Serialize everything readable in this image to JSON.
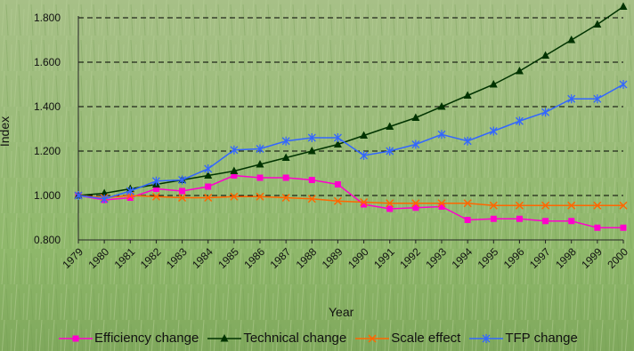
{
  "chart_data": {
    "type": "line",
    "title": "",
    "xlabel": "Year",
    "ylabel": "Index",
    "categories": [
      "1979",
      "1980",
      "1981",
      "1982",
      "1983",
      "1984",
      "1985",
      "1986",
      "1987",
      "1988",
      "1989",
      "1990",
      "1991",
      "1992",
      "1993",
      "1994",
      "1995",
      "1996",
      "1997",
      "1998",
      "1999",
      "2000"
    ],
    "ylim": [
      0.8,
      1.8
    ],
    "yticks": [
      "0.800",
      "1.000",
      "1.200",
      "1.400",
      "1.600",
      "1.800"
    ],
    "grid": "horizontal dashed",
    "legend_position": "bottom",
    "series": [
      {
        "name": "Efficiency change",
        "color": "#FF00CC",
        "marker": "square",
        "values": [
          1.0,
          0.98,
          0.99,
          1.03,
          1.02,
          1.04,
          1.09,
          1.08,
          1.08,
          1.07,
          1.05,
          0.96,
          0.94,
          0.945,
          0.95,
          0.89,
          0.895,
          0.895,
          0.885,
          0.885,
          0.855,
          0.855
        ]
      },
      {
        "name": "Technical change",
        "color": "#003300",
        "marker": "triangle",
        "values": [
          1.0,
          1.01,
          1.03,
          1.05,
          1.07,
          1.09,
          1.11,
          1.14,
          1.17,
          1.2,
          1.23,
          1.27,
          1.31,
          1.35,
          1.4,
          1.45,
          1.5,
          1.56,
          1.63,
          1.7,
          1.77,
          1.85
        ]
      },
      {
        "name": "Scale effect",
        "color": "#FF6600",
        "marker": "x",
        "values": [
          1.0,
          0.99,
          1.0,
          0.995,
          0.99,
          0.99,
          0.995,
          0.995,
          0.99,
          0.985,
          0.975,
          0.97,
          0.965,
          0.965,
          0.965,
          0.965,
          0.955,
          0.955,
          0.955,
          0.955,
          0.955,
          0.955
        ]
      },
      {
        "name": "TFP change",
        "color": "#3366FF",
        "marker": "asterisk",
        "values": [
          1.0,
          0.985,
          1.02,
          1.065,
          1.07,
          1.12,
          1.205,
          1.21,
          1.245,
          1.26,
          1.26,
          1.18,
          1.2,
          1.23,
          1.275,
          1.245,
          1.29,
          1.335,
          1.375,
          1.435,
          1.435,
          1.5
        ]
      }
    ]
  }
}
